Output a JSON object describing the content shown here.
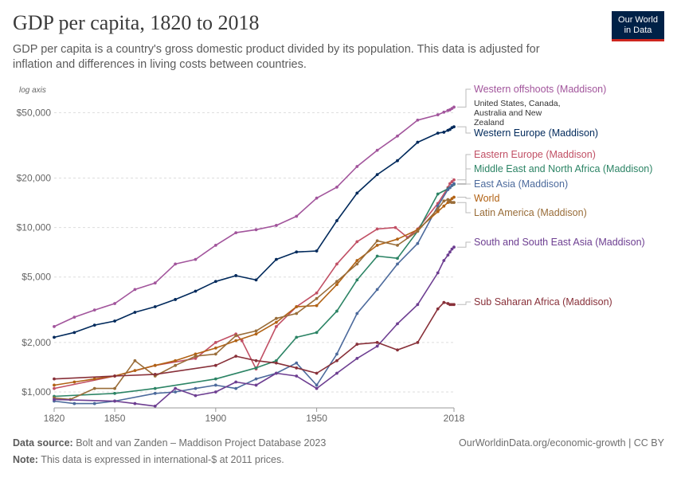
{
  "header": {
    "title": "GDP per capita, 1820 to 2018",
    "subtitle": "GDP per capita is a country's gross domestic product divided by its population. This data is adjusted for inflation and differences in living costs between countries."
  },
  "logo": {
    "line1": "Our World",
    "line2": "in Data",
    "bg_color": "#002147",
    "accent_color": "#ce261e"
  },
  "footer": {
    "source_label": "Data source:",
    "source_text": "Bolt and van Zanden – Maddison Project Database 2023",
    "note_label": "Note:",
    "note_text": "This data is expressed in international-$ at 2011 prices.",
    "link_text": "OurWorldinData.org/economic-growth | CC BY"
  },
  "chart_data": {
    "type": "line",
    "title": "GDP per capita, 1820 to 2018",
    "yscale": "log",
    "axis_note": "log axis",
    "xlim": [
      1820,
      2018
    ],
    "ylim": [
      800,
      60000
    ],
    "x_ticks": [
      {
        "value": 1820,
        "label": "1820"
      },
      {
        "value": 1850,
        "label": "1850"
      },
      {
        "value": 1900,
        "label": "1900"
      },
      {
        "value": 1950,
        "label": "1950"
      },
      {
        "value": 2018,
        "label": "2018"
      }
    ],
    "y_ticks": [
      {
        "value": 1000,
        "label": "$1,000"
      },
      {
        "value": 2000,
        "label": "$2,000"
      },
      {
        "value": 5000,
        "label": "$5,000"
      },
      {
        "value": 10000,
        "label": "$10,000"
      },
      {
        "value": 20000,
        "label": "$20,000"
      },
      {
        "value": 50000,
        "label": "$50,000"
      }
    ],
    "grid": true,
    "series": [
      {
        "name": "Western offshoots (Maddison)",
        "sublabel": [
          "United States, Canada,",
          "Australia and New",
          "Zealand"
        ],
        "color": "#a2559c",
        "x": [
          1820,
          1830,
          1840,
          1850,
          1860,
          1870,
          1880,
          1890,
          1900,
          1910,
          1920,
          1930,
          1940,
          1950,
          1960,
          1970,
          1980,
          1990,
          2000,
          2010,
          2013,
          2015,
          2016,
          2017,
          2018
        ],
        "y": [
          2500,
          2850,
          3150,
          3450,
          4200,
          4600,
          6000,
          6400,
          7800,
          9300,
          9700,
          10300,
          11700,
          15100,
          17600,
          23500,
          29500,
          36000,
          45000,
          48500,
          50300,
          51500,
          52000,
          53000,
          54000
        ]
      },
      {
        "name": "Western Europe (Maddison)",
        "color": "#00295b",
        "x": [
          1820,
          1830,
          1840,
          1850,
          1860,
          1870,
          1880,
          1890,
          1900,
          1910,
          1920,
          1930,
          1940,
          1950,
          1960,
          1970,
          1980,
          1990,
          2000,
          2010,
          2013,
          2015,
          2016,
          2017,
          2018
        ],
        "y": [
          2150,
          2300,
          2550,
          2700,
          3050,
          3300,
          3650,
          4100,
          4700,
          5100,
          4800,
          6400,
          7100,
          7200,
          11000,
          16200,
          21000,
          25500,
          33000,
          37500,
          38000,
          39000,
          39500,
          40500,
          41000
        ]
      },
      {
        "name": "Eastern Europe (Maddison)",
        "color": "#c15065",
        "x": [
          1820,
          1850,
          1870,
          1890,
          1900,
          1910,
          1913,
          1920,
          1930,
          1940,
          1950,
          1960,
          1970,
          1980,
          1989,
          1995,
          2000,
          2010,
          2015,
          2016,
          2017,
          2018
        ],
        "y": [
          1050,
          1250,
          1450,
          1600,
          2000,
          2250,
          2050,
          1380,
          2500,
          3300,
          4000,
          6000,
          8200,
          9800,
          10000,
          8700,
          9800,
          14000,
          17500,
          18500,
          19000,
          19500
        ]
      },
      {
        "name": "Middle East and North Africa (Maddison)",
        "color": "#2c8465",
        "x": [
          1820,
          1850,
          1870,
          1900,
          1920,
          1930,
          1940,
          1950,
          1960,
          1970,
          1980,
          1990,
          2000,
          2010,
          2015,
          2016,
          2017,
          2018
        ],
        "y": [
          940,
          980,
          1050,
          1200,
          1400,
          1550,
          2150,
          2300,
          3100,
          4800,
          6700,
          6500,
          9500,
          16000,
          17200,
          17500,
          18000,
          18300
        ]
      },
      {
        "name": "East Asia (Maddison)",
        "color": "#4c6a9c",
        "x": [
          1820,
          1830,
          1840,
          1850,
          1870,
          1880,
          1890,
          1900,
          1910,
          1920,
          1930,
          1940,
          1950,
          1960,
          1970,
          1980,
          1990,
          2000,
          2010,
          2015,
          2016,
          2017,
          2018
        ],
        "y": [
          880,
          850,
          850,
          880,
          980,
          1000,
          1050,
          1100,
          1050,
          1200,
          1300,
          1500,
          1100,
          1700,
          3000,
          4200,
          6000,
          8000,
          13500,
          17000,
          17500,
          18000,
          18500
        ]
      },
      {
        "name": "World",
        "color": "#b16214",
        "x": [
          1820,
          1830,
          1840,
          1850,
          1860,
          1870,
          1880,
          1890,
          1900,
          1910,
          1920,
          1930,
          1940,
          1950,
          1960,
          1970,
          1980,
          1990,
          2000,
          2010,
          2013,
          2015,
          2016,
          2017,
          2018
        ],
        "y": [
          1100,
          1150,
          1200,
          1250,
          1350,
          1450,
          1550,
          1700,
          1850,
          2050,
          2250,
          2650,
          3300,
          3350,
          4500,
          6300,
          7800,
          8500,
          9700,
          12500,
          13500,
          14200,
          14600,
          15000,
          15300
        ]
      },
      {
        "name": "Latin America (Maddison)",
        "color": "#996d39",
        "x": [
          1820,
          1828,
          1840,
          1850,
          1860,
          1870,
          1880,
          1890,
          1900,
          1910,
          1920,
          1930,
          1940,
          1950,
          1960,
          1970,
          1980,
          1990,
          2000,
          2010,
          2013,
          2015,
          2016,
          2017,
          2018
        ],
        "y": [
          920,
          900,
          1050,
          1050,
          1550,
          1250,
          1450,
          1650,
          1700,
          2200,
          2350,
          2800,
          3000,
          3700,
          4700,
          6000,
          8300,
          7800,
          9500,
          13000,
          14500,
          14800,
          14300,
          14200,
          14200
        ]
      },
      {
        "name": "South and South East Asia (Maddison)",
        "color": "#6d3e91",
        "x": [
          1820,
          1850,
          1860,
          1870,
          1880,
          1890,
          1900,
          1910,
          1920,
          1930,
          1940,
          1950,
          1960,
          1970,
          1980,
          1990,
          2000,
          2010,
          2013,
          2015,
          2016,
          2017,
          2018
        ],
        "y": [
          900,
          880,
          850,
          820,
          1050,
          950,
          1000,
          1150,
          1100,
          1300,
          1250,
          1050,
          1300,
          1600,
          1900,
          2600,
          3400,
          5300,
          6300,
          6800,
          7100,
          7400,
          7600
        ]
      },
      {
        "name": "Sub Saharan Africa (Maddison)",
        "color": "#883039",
        "x": [
          1820,
          1850,
          1870,
          1900,
          1910,
          1920,
          1930,
          1940,
          1950,
          1960,
          1970,
          1980,
          1990,
          2000,
          2010,
          2013,
          2015,
          2016,
          2017,
          2018
        ],
        "y": [
          1200,
          1250,
          1280,
          1450,
          1650,
          1550,
          1500,
          1400,
          1300,
          1550,
          1950,
          2000,
          1800,
          2000,
          3200,
          3500,
          3450,
          3400,
          3400,
          3400
        ]
      }
    ]
  }
}
